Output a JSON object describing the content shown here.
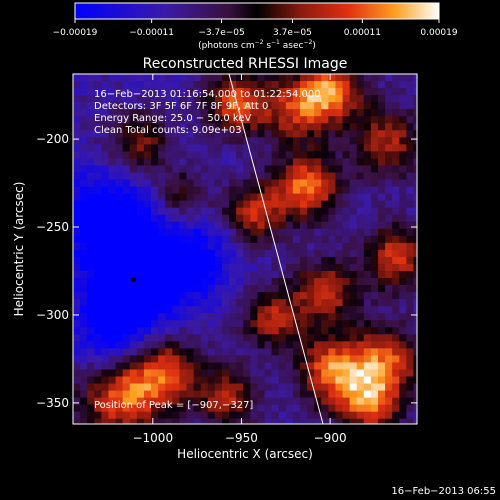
{
  "chart_data": {
    "type": "heatmap",
    "title": "Reconstructed RHESSI Image",
    "xlabel": "Heliocentric X (arcsec)",
    "ylabel": "Heliocentric Y (arcsec)",
    "xlim": [
      -1045,
      -851
    ],
    "ylim": [
      -362,
      -163
    ],
    "xticks": [
      -1000,
      -950,
      -900
    ],
    "yticks": [
      -200,
      -250,
      -300,
      -350
    ],
    "xtick_labels": [
      "−1000",
      "−950",
      "−900"
    ],
    "ytick_labels": [
      "−200",
      "−250",
      "−300",
      "−350"
    ],
    "colorbar": {
      "range": [
        -0.00019,
        0.00019
      ],
      "ticks": [
        -0.00019,
        -0.00011,
        -3.7e-05,
        3.7e-05,
        0.00011,
        0.00019
      ],
      "tick_labels": [
        "−0.00019",
        "−0.00011",
        "−3.7e−05",
        "3.7e−05",
        "0.00011",
        "0.00019"
      ],
      "unit_main": "(photons cm",
      "unit_sup1": "−2",
      "unit_mid": " s",
      "unit_sup2": "−1",
      "unit_mid2": " asec",
      "unit_sup3": "−2",
      "unit_end": ")"
    },
    "annotations": [
      "16−Feb−2013 01:16:54.000 to 01:22:54.000",
      "Detectors: 3F 5F 6F 7F 8F 9F, Att 0",
      "Energy Range: 25.0 − 50.0 keV",
      "Clean     Total counts: 9.09e+03"
    ],
    "peak_label": "Position of Peak = [−907,−327]",
    "peak_marker": [
      -1011,
      -280
    ],
    "limb_line": [
      [
        -957,
        -163
      ],
      [
        -904,
        -362
      ]
    ],
    "hot_regions": [
      {
        "x": -955,
        "y": -178,
        "r": 12,
        "v": 0.00018
      },
      {
        "x": -920,
        "y": -180,
        "r": 14,
        "v": 0.00016
      },
      {
        "x": -900,
        "y": -170,
        "r": 12,
        "v": 0.00017
      },
      {
        "x": -915,
        "y": -225,
        "r": 13,
        "v": 0.00019
      },
      {
        "x": -945,
        "y": -240,
        "r": 12,
        "v": 0.00015
      },
      {
        "x": -870,
        "y": -200,
        "r": 14,
        "v": 0.00014
      },
      {
        "x": -865,
        "y": -265,
        "r": 13,
        "v": 0.00016
      },
      {
        "x": -905,
        "y": -285,
        "r": 13,
        "v": 0.00015
      },
      {
        "x": -935,
        "y": -300,
        "r": 12,
        "v": 0.00014
      },
      {
        "x": -1020,
        "y": -345,
        "r": 16,
        "v": 0.00018
      },
      {
        "x": -995,
        "y": -330,
        "r": 14,
        "v": 0.00016
      },
      {
        "x": -960,
        "y": -345,
        "r": 12,
        "v": 0.00014
      },
      {
        "x": -900,
        "y": -330,
        "r": 14,
        "v": 0.00019
      },
      {
        "x": -870,
        "y": -325,
        "r": 14,
        "v": 0.00017
      },
      {
        "x": -1010,
        "y": -200,
        "r": 12,
        "v": 0.00012
      },
      {
        "x": -985,
        "y": -230,
        "r": 10,
        "v": 0.0001
      },
      {
        "x": -880,
        "y": -350,
        "r": 12,
        "v": 0.00016
      }
    ],
    "cold_regions": [
      {
        "x": -1010,
        "y": -275,
        "r": 20,
        "v": -0.00019
      },
      {
        "x": -1030,
        "y": -240,
        "r": 18,
        "v": -0.00012
      },
      {
        "x": -1025,
        "y": -310,
        "r": 15,
        "v": -0.00011
      },
      {
        "x": -975,
        "y": -265,
        "r": 16,
        "v": -8e-05
      }
    ]
  },
  "footer": {
    "timestamp": "16−Feb−2013 06:55"
  }
}
